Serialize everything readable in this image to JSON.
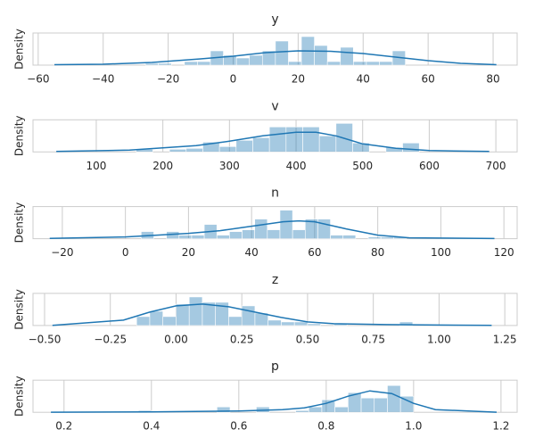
{
  "chart_data": [
    {
      "type": "histogram",
      "title": "y",
      "ylabel": "Density",
      "color": "#1f77b4",
      "grid": true,
      "bins": [
        -27,
        -23,
        -19,
        -15,
        -11,
        -7,
        -3,
        1,
        5,
        9,
        13,
        17,
        21,
        25,
        29,
        33,
        37,
        41,
        45,
        49,
        53
      ],
      "values": [
        0.002,
        0.002,
        0,
        0.004,
        0.004,
        0.016,
        0.011,
        0.008,
        0.011,
        0.016,
        0.027,
        0.004,
        0.032,
        0.022,
        0.004,
        0.02,
        0.004,
        0.004,
        0.004,
        0.016
      ],
      "kde": {
        "x": [
          -55,
          -40,
          -25,
          -10,
          0,
          10,
          20,
          30,
          40,
          50,
          60,
          70,
          81
        ],
        "values": [
          0.0005,
          0.001,
          0.003,
          0.007,
          0.01,
          0.014,
          0.016,
          0.0155,
          0.013,
          0.009,
          0.005,
          0.002,
          0.0005
        ]
      },
      "xlim": [
        -61.6,
        87.4
      ],
      "ylim": [
        0,
        0.036
      ],
      "xticks": [
        {
          "value": -60,
          "label": "−60"
        },
        {
          "value": -40,
          "label": "−40"
        },
        {
          "value": -20,
          "label": "−20"
        },
        0,
        20,
        40,
        60,
        80
      ]
    },
    {
      "type": "histogram",
      "title": "v",
      "ylabel": "Density",
      "color": "#1f77b4",
      "grid": true,
      "bins": [
        160,
        185,
        210,
        235,
        260,
        285,
        310,
        335,
        360,
        385,
        410,
        435,
        460,
        485,
        510,
        535,
        560,
        585
      ],
      "values": [
        0.0006,
        0,
        0.0006,
        0.0008,
        0.0022,
        0.0012,
        0.0026,
        0.0032,
        0.0056,
        0.0056,
        0.0056,
        0.0036,
        0.0064,
        0.002,
        0,
        0.001,
        0.002
      ],
      "kde": {
        "x": [
          40,
          150,
          250,
          300,
          350,
          400,
          430,
          460,
          500,
          550,
          600,
          690
        ],
        "values": [
          0.0001,
          0.0004,
          0.0014,
          0.0024,
          0.0036,
          0.0044,
          0.0044,
          0.0036,
          0.0018,
          0.0008,
          0.0003,
          0.0001
        ]
      },
      "xlim": [
        5,
        732
      ],
      "ylim": [
        0,
        0.0072
      ],
      "xticks": [
        100,
        200,
        300,
        400,
        500,
        600,
        700
      ]
    },
    {
      "type": "histogram",
      "title": "n",
      "ylabel": "Density",
      "color": "#1f77b4",
      "grid": true,
      "bins": [
        5,
        9,
        13,
        17,
        21,
        25,
        29,
        33,
        37,
        41,
        45,
        49,
        53,
        57,
        61,
        65,
        69,
        73,
        77,
        81,
        85,
        89
      ],
      "values": [
        0.008,
        0,
        0.008,
        0.004,
        0.004,
        0.016,
        0.004,
        0.008,
        0.01,
        0.022,
        0.01,
        0.032,
        0.01,
        0.022,
        0.022,
        0.004,
        0.004,
        0,
        0.002,
        0.002,
        0.002
      ],
      "kde": {
        "x": [
          -24,
          0,
          20,
          30,
          40,
          50,
          55,
          60,
          70,
          80,
          90,
          117
        ],
        "values": [
          0.0003,
          0.002,
          0.006,
          0.009,
          0.014,
          0.019,
          0.02,
          0.019,
          0.011,
          0.004,
          0.001,
          0.0002
        ]
      },
      "xlim": [
        -29.3,
        124.2
      ],
      "ylim": [
        0,
        0.036
      ],
      "xticks": [
        {
          "value": -20,
          "label": "−20"
        },
        0,
        20,
        40,
        60,
        80,
        100,
        120
      ]
    },
    {
      "type": "histogram",
      "title": "z",
      "ylabel": "Density",
      "color": "#1f77b4",
      "grid": true,
      "bins": [
        -0.15,
        -0.1,
        -0.05,
        0,
        0.05,
        0.1,
        0.15,
        0.2,
        0.25,
        0.3,
        0.35,
        0.4,
        0.45,
        0.5,
        0.55,
        0.6,
        0.65,
        0.7,
        0.75,
        0.8,
        0.85,
        0.9
      ],
      "values": [
        1.0,
        1.6,
        1.0,
        2.4,
        3.2,
        2.6,
        2.6,
        1.0,
        2.2,
        1.4,
        0.6,
        0.4,
        0.4,
        0.2,
        0,
        0.2,
        0,
        0,
        0,
        0,
        0.4
      ],
      "kde": {
        "x": [
          -0.47,
          -0.2,
          -0.1,
          0,
          0.1,
          0.2,
          0.3,
          0.4,
          0.5,
          0.6,
          0.8,
          1.0,
          1.2
        ],
        "values": [
          0.02,
          0.6,
          1.5,
          2.2,
          2.4,
          2.1,
          1.5,
          0.9,
          0.4,
          0.2,
          0.1,
          0.05,
          0.02
        ]
      },
      "xlim": [
        -0.544,
        1.297
      ],
      "ylim": [
        0,
        3.6
      ],
      "xticks": [
        {
          "value": -0.5,
          "label": "−0.50"
        },
        {
          "value": -0.25,
          "label": "−0.25"
        },
        {
          "value": 0,
          "label": "0.00"
        },
        0.25,
        {
          "value": 0.5,
          "label": "0.50"
        },
        0.75,
        {
          "value": 1,
          "label": "1.00"
        },
        1.25
      ]
    },
    {
      "type": "histogram",
      "title": "p",
      "ylabel": "Density",
      "color": "#1f77b4",
      "grid": true,
      "bins": [
        0.37,
        0.4,
        0.43,
        0.46,
        0.49,
        0.52,
        0.55,
        0.58,
        0.61,
        0.64,
        0.67,
        0.7,
        0.73,
        0.76,
        0.79,
        0.82,
        0.85,
        0.88,
        0.91,
        0.94,
        0.97,
        1.0
      ],
      "values": [
        0.4,
        0,
        0,
        0,
        0,
        0,
        1.2,
        0,
        0,
        1.2,
        0,
        0,
        0.4,
        1.2,
        2.8,
        1.2,
        4.4,
        3.2,
        3.2,
        6.0,
        3.6
      ],
      "kde": {
        "x": [
          0.17,
          0.4,
          0.5,
          0.6,
          0.7,
          0.75,
          0.8,
          0.85,
          0.9,
          0.95,
          1.0,
          1.05,
          1.19
        ],
        "values": [
          0.02,
          0.1,
          0.2,
          0.3,
          0.6,
          1.0,
          2.0,
          3.6,
          4.8,
          4.2,
          2.0,
          0.6,
          0.02
        ]
      },
      "xlim": [
        0.129,
        1.237
      ],
      "ylim": [
        0,
        7.2
      ],
      "xticks": [
        0.2,
        0.4,
        0.6,
        0.8,
        {
          "value": 1,
          "label": "1.0"
        },
        1.2
      ]
    }
  ]
}
